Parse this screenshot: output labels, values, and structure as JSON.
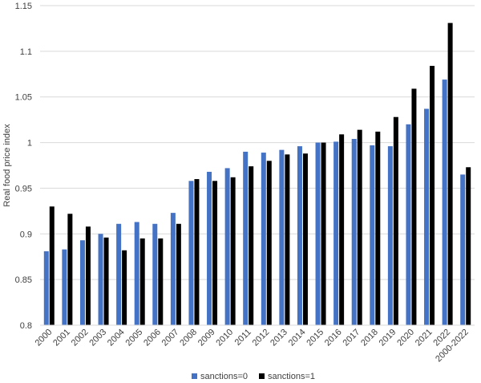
{
  "chart_data": {
    "type": "bar",
    "title": "",
    "xlabel": "",
    "ylabel": "Real food price index",
    "ylim": [
      0.8,
      1.15
    ],
    "yticks": [
      "0.8",
      "0.85",
      "0.9",
      "0.95",
      "1",
      "1.05",
      "1.1",
      "1.15"
    ],
    "grid": true,
    "legend_position": "bottom",
    "categories": [
      "2000",
      "2001",
      "2002",
      "2003",
      "2004",
      "2005",
      "2006",
      "2007",
      "2008",
      "2009",
      "2010",
      "2011",
      "2012",
      "2013",
      "2014",
      "2015",
      "2016",
      "2017",
      "2018",
      "2019",
      "2020",
      "2021",
      "2022",
      "2000-2022"
    ],
    "series": [
      {
        "name": "sanctions=0",
        "color": "#4472c4",
        "values": [
          0.881,
          0.883,
          0.893,
          0.9,
          0.911,
          0.913,
          0.911,
          0.923,
          0.958,
          0.968,
          0.972,
          0.99,
          0.989,
          0.992,
          0.996,
          1.0,
          1.001,
          1.004,
          0.997,
          0.996,
          1.02,
          1.037,
          1.069,
          0.965
        ]
      },
      {
        "name": "sanctions=1",
        "color": "#000000",
        "values": [
          0.93,
          0.922,
          0.908,
          0.896,
          0.882,
          0.895,
          0.895,
          0.911,
          0.96,
          0.958,
          0.962,
          0.974,
          0.98,
          0.987,
          0.988,
          1.0,
          1.009,
          1.014,
          1.012,
          1.028,
          1.059,
          1.084,
          1.131,
          0.973
        ]
      }
    ]
  }
}
